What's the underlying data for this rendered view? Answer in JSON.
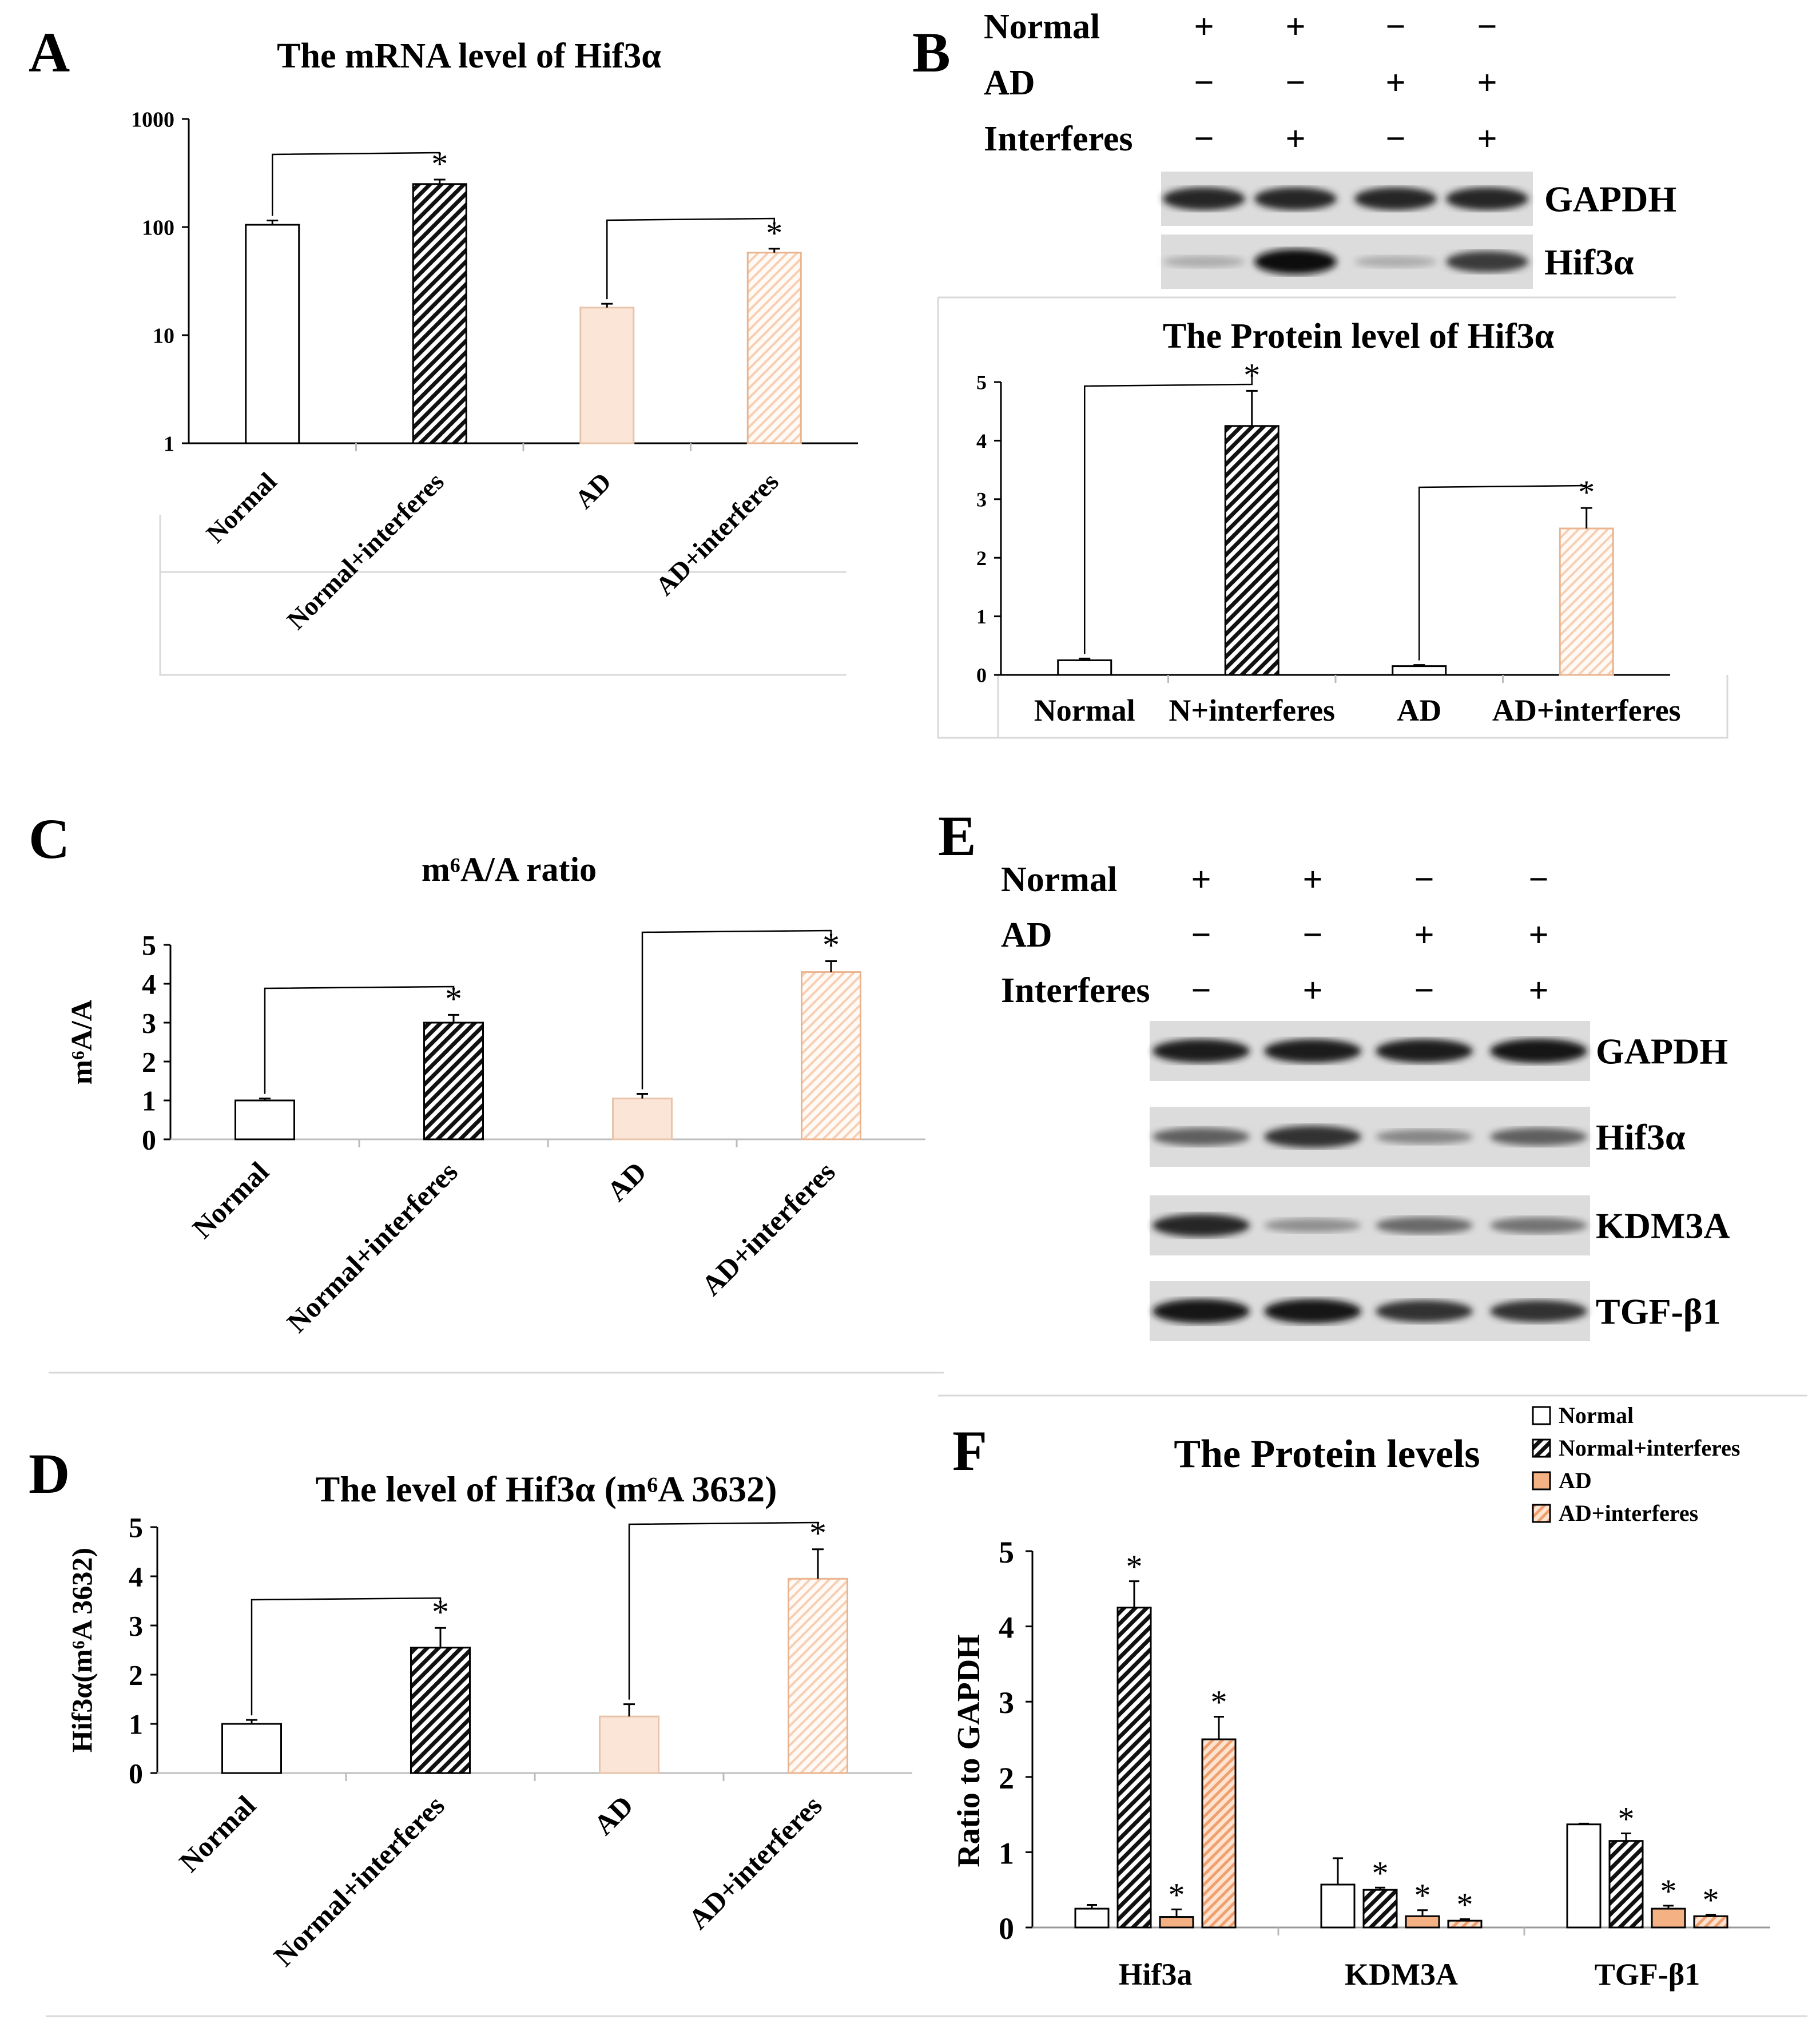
{
  "panels": {
    "A": {
      "letter": "A"
    },
    "B": {
      "letter": "B"
    },
    "C": {
      "letter": "C"
    },
    "D": {
      "letter": "D"
    },
    "E": {
      "letter": "E"
    },
    "F": {
      "letter": "F"
    }
  },
  "blot_B": {
    "conditions": [
      {
        "label": "Normal",
        "signs": [
          "+",
          "+",
          "−",
          "−"
        ]
      },
      {
        "label": "AD",
        "signs": [
          "−",
          "−",
          "+",
          "+"
        ]
      },
      {
        "label": "Interferes",
        "signs": [
          "−",
          "+",
          "−",
          "+"
        ]
      }
    ],
    "bands": [
      {
        "label": "GAPDH",
        "intensity": [
          0.85,
          0.85,
          0.85,
          0.85
        ]
      },
      {
        "label": "Hif3α",
        "intensity": [
          0.15,
          1.0,
          0.15,
          0.75
        ]
      }
    ]
  },
  "blot_E": {
    "conditions": [
      {
        "label": "Normal",
        "signs": [
          "+",
          "+",
          "−",
          "−"
        ]
      },
      {
        "label": "AD",
        "signs": [
          "−",
          "−",
          "+",
          "+"
        ]
      },
      {
        "label": "Interferes",
        "signs": [
          "−",
          "+",
          "−",
          "+"
        ]
      }
    ],
    "bands": [
      {
        "label": "GAPDH",
        "intensity": [
          0.9,
          0.9,
          0.9,
          0.95
        ]
      },
      {
        "label": "Hif3α",
        "intensity": [
          0.55,
          0.8,
          0.35,
          0.55
        ]
      },
      {
        "label": "KDM3A",
        "intensity": [
          0.85,
          0.3,
          0.5,
          0.45
        ]
      },
      {
        "label": "TGF-β1",
        "intensity": [
          0.95,
          0.95,
          0.8,
          0.8
        ]
      }
    ]
  },
  "colors": {
    "normal": "#ffffff",
    "normal_interferes": "hatch-black",
    "ad": "#fbe5d6",
    "ad_interferes": "hatch-peach",
    "ad_F": "#f4b183",
    "axis": "#000000",
    "frame": "#d9d9d9"
  },
  "chart_data": [
    {
      "id": "A",
      "type": "bar",
      "title": "The mRNA level of Hif3α",
      "yscale": "log",
      "ylim": [
        1,
        1000
      ],
      "yticks": [
        "1",
        "10",
        "100",
        "1000"
      ],
      "categories": [
        "Normal",
        "Normal+interferes",
        "AD",
        "AD+interferes"
      ],
      "values": [
        105,
        250,
        18,
        58
      ],
      "errors": [
        10,
        25,
        1.5,
        5
      ],
      "significance": [
        "",
        "*",
        "",
        "*"
      ],
      "fills": [
        "normal",
        "normal_interferes",
        "ad",
        "ad_interferes"
      ],
      "xlabel": "",
      "ylabel": ""
    },
    {
      "id": "B",
      "type": "bar",
      "title": "The Protein level of Hif3α",
      "ylim": [
        0,
        5
      ],
      "yticks": [
        "0",
        "1",
        "2",
        "3",
        "4",
        "5"
      ],
      "categories": [
        "Normal",
        "N+interferes",
        "AD",
        "AD+interferes"
      ],
      "values": [
        0.25,
        4.25,
        0.15,
        2.5
      ],
      "errors": [
        0.03,
        0.6,
        0.02,
        0.35
      ],
      "significance": [
        "",
        "*",
        "",
        "*"
      ],
      "fills": [
        "normal",
        "normal_interferes",
        "normal",
        "ad_interferes"
      ],
      "xlabel": "",
      "ylabel": ""
    },
    {
      "id": "C",
      "type": "bar",
      "title": "m⁶A/A ratio",
      "ylim": [
        0,
        5
      ],
      "yticks": [
        "0",
        "1",
        "2",
        "3",
        "4",
        "5"
      ],
      "categories": [
        "Normal",
        "Normal+interferes",
        "AD",
        "AD+interferes"
      ],
      "values": [
        1.0,
        3.0,
        1.05,
        4.3
      ],
      "errors": [
        0.05,
        0.2,
        0.12,
        0.28
      ],
      "significance": [
        "",
        "*",
        "",
        "*"
      ],
      "fills": [
        "normal",
        "normal_interferes",
        "ad",
        "ad_interferes"
      ],
      "xlabel": "",
      "ylabel": "m⁶A/A"
    },
    {
      "id": "D",
      "type": "bar",
      "title": "The level of Hif3α (m⁶A 3632)",
      "ylim": [
        0,
        5
      ],
      "yticks": [
        "0",
        "1",
        "2",
        "3",
        "4",
        "5"
      ],
      "categories": [
        "Normal",
        "Normal+interferes",
        "AD",
        "AD+interferes"
      ],
      "values": [
        1.0,
        2.55,
        1.15,
        3.95
      ],
      "errors": [
        0.08,
        0.4,
        0.25,
        0.6
      ],
      "significance": [
        "",
        "*",
        "",
        "*"
      ],
      "fills": [
        "normal",
        "normal_interferes",
        "ad",
        "ad_interferes"
      ],
      "xlabel": "",
      "ylabel": "Hif3α(m⁶A 3632)"
    },
    {
      "id": "F",
      "type": "bar",
      "title": "The Protein levels",
      "ylim": [
        0,
        5
      ],
      "yticks": [
        "0",
        "1",
        "2",
        "3",
        "4",
        "5"
      ],
      "categories": [
        "Hif3a",
        "KDM3A",
        "TGF-β1"
      ],
      "series": [
        {
          "name": "Normal",
          "fill": "normal",
          "values": [
            0.25,
            0.57,
            1.37
          ],
          "errors": [
            0.05,
            0.35,
            0.01
          ],
          "significance": [
            "",
            "",
            ""
          ]
        },
        {
          "name": "Normal+interferes",
          "fill": "normal_interferes",
          "values": [
            4.25,
            0.5,
            1.15
          ],
          "errors": [
            0.35,
            0.03,
            0.1
          ],
          "significance": [
            "*",
            "*",
            "*"
          ]
        },
        {
          "name": "AD",
          "fill": "ad_F",
          "values": [
            0.14,
            0.15,
            0.25
          ],
          "errors": [
            0.1,
            0.08,
            0.04
          ],
          "significance": [
            "*",
            "*",
            "*"
          ]
        },
        {
          "name": "AD+interferes",
          "fill": "ad_F_hatch",
          "values": [
            2.5,
            0.09,
            0.15
          ],
          "errors": [
            0.3,
            0.02,
            0.02
          ],
          "significance": [
            "*",
            "*",
            "*"
          ]
        }
      ],
      "legend_position": "top-right",
      "xlabel": "",
      "ylabel": "Ratio to GAPDH"
    }
  ]
}
